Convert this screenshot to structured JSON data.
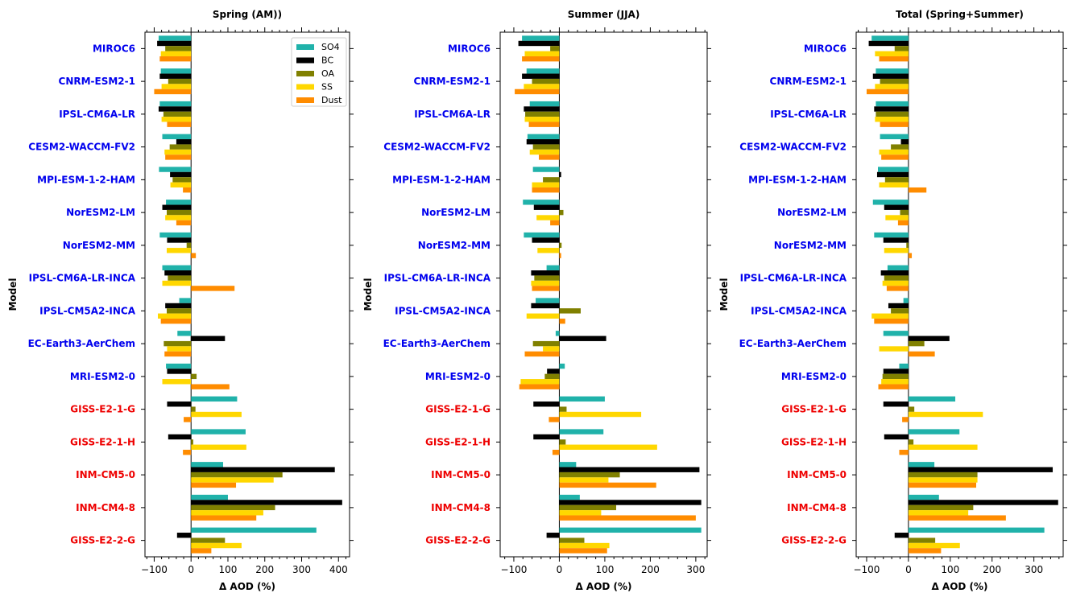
{
  "colors": {
    "SO4": "#20b2aa",
    "BC": "#000000",
    "OA": "#808000",
    "SS": "#ffd700",
    "Dust": "#ff8c00",
    "model_blue": "#0000ee",
    "model_red": "#ee0000"
  },
  "legend": {
    "placement": "upper-right of first panel",
    "entries": [
      "SO4",
      "BC",
      "OA",
      "SS",
      "Dust"
    ]
  },
  "chart_data": {
    "type": "bar",
    "orientation": "horizontal",
    "ylabel": "Model",
    "xlabel": "Δ AOD (%)",
    "species": [
      "SO4",
      "BC",
      "OA",
      "SS",
      "Dust"
    ],
    "models": [
      {
        "name": "MIROC6",
        "group": "blue"
      },
      {
        "name": "CNRM-ESM2-1",
        "group": "blue"
      },
      {
        "name": "IPSL-CM6A-LR",
        "group": "blue"
      },
      {
        "name": "CESM2-WACCM-FV2",
        "group": "blue"
      },
      {
        "name": "MPI-ESM-1-2-HAM",
        "group": "blue"
      },
      {
        "name": "NorESM2-LM",
        "group": "blue"
      },
      {
        "name": "NorESM2-MM",
        "group": "blue"
      },
      {
        "name": "IPSL-CM6A-LR-INCA",
        "group": "blue"
      },
      {
        "name": "IPSL-CM5A2-INCA",
        "group": "blue"
      },
      {
        "name": "EC-Earth3-AerChem",
        "group": "blue"
      },
      {
        "name": "MRI-ESM2-0",
        "group": "blue"
      },
      {
        "name": "GISS-E2-1-G",
        "group": "red"
      },
      {
        "name": "GISS-E2-1-H",
        "group": "red"
      },
      {
        "name": "INM-CM5-0",
        "group": "red"
      },
      {
        "name": "INM-CM4-8",
        "group": "red"
      },
      {
        "name": "GISS-E2-2-G",
        "group": "red"
      }
    ],
    "panels": [
      {
        "title": "Spring (AM))",
        "xlim": [
          -125,
          430
        ],
        "xticks": [
          -100,
          0,
          100,
          200,
          300,
          400
        ],
        "series": [
          {
            "name": "SO4",
            "values": [
              -88,
              -82,
              -85,
              -78,
              -87,
              -68,
              -85,
              -78,
              -32,
              -37,
              -68,
              125,
              148,
              87,
              100,
              340
            ]
          },
          {
            "name": "BC",
            "values": [
              -92,
              -85,
              -88,
              -40,
              -57,
              -78,
              -65,
              -72,
              -70,
              92,
              -65,
              -65,
              -62,
              390,
              410,
              -38
            ]
          },
          {
            "name": "OA",
            "values": [
              -70,
              -62,
              -75,
              -58,
              -50,
              -66,
              -12,
              -63,
              -66,
              -74,
              15,
              12,
              6,
              248,
              228,
              92
            ]
          },
          {
            "name": "SS",
            "values": [
              -82,
              -80,
              -80,
              -72,
              -56,
              -70,
              -66,
              -78,
              -90,
              -65,
              -78,
              137,
              150,
              224,
              196,
              137
            ]
          },
          {
            "name": "Dust",
            "values": [
              -85,
              -100,
              -65,
              -70,
              -22,
              -40,
              13,
              118,
              -82,
              -72,
              104,
              -20,
              -22,
              122,
              177,
              55
            ]
          }
        ]
      },
      {
        "title": "Summer (JJA)",
        "xlim": [
          -130,
          325
        ],
        "xticks": [
          -100,
          0,
          100,
          200,
          300
        ],
        "series": [
          {
            "name": "SO4",
            "values": [
              -82,
              -72,
              -65,
              -70,
              -58,
              -80,
              -78,
              -28,
              -52,
              -8,
              12,
              100,
              97,
              37,
              45,
              312
            ]
          },
          {
            "name": "BC",
            "values": [
              -90,
              -82,
              -78,
              -72,
              4,
              -56,
              -60,
              -62,
              -62,
              103,
              -27,
              -57,
              -57,
              308,
              312,
              -28
            ]
          },
          {
            "name": "OA",
            "values": [
              -20,
              -60,
              -75,
              -58,
              -36,
              9,
              5,
              -55,
              47,
              -58,
              -32,
              16,
              14,
              133,
              125,
              55
            ]
          },
          {
            "name": "SS",
            "values": [
              -76,
              -78,
              -76,
              -65,
              -60,
              -50,
              -48,
              -62,
              -72,
              -36,
              -85,
              180,
              215,
              108,
              92,
              110
            ]
          },
          {
            "name": "Dust",
            "values": [
              -82,
              -98,
              -67,
              -45,
              -60,
              -20,
              4,
              -60,
              13,
              -76,
              -88,
              -23,
              -15,
              213,
              300,
              105
            ]
          }
        ]
      },
      {
        "title": "Total (Spring+Summer)",
        "xlim": [
          -125,
          370
        ],
        "xticks": [
          -100,
          0,
          100,
          200,
          300
        ],
        "series": [
          {
            "name": "SO4",
            "values": [
              -88,
              -78,
              -78,
              -68,
              -73,
              -85,
              -82,
              -50,
              -12,
              -60,
              -22,
              112,
              122,
              62,
              73,
              325
            ]
          },
          {
            "name": "BC",
            "values": [
              -95,
              -85,
              -82,
              -18,
              -75,
              -58,
              -60,
              -66,
              -48,
              98,
              -60,
              -60,
              -58,
              345,
              358,
              -33
            ]
          },
          {
            "name": "OA",
            "values": [
              -33,
              -68,
              -78,
              -42,
              -56,
              -20,
              -5,
              -58,
              -42,
              38,
              -62,
              14,
              12,
              165,
              155,
              64
            ]
          },
          {
            "name": "SS",
            "values": [
              -80,
              -80,
              -80,
              -70,
              -70,
              -55,
              -58,
              -62,
              -88,
              -70,
              -65,
              178,
              165,
              165,
              143,
              123
            ]
          },
          {
            "name": "Dust",
            "values": [
              -70,
              -100,
              -68,
              -65,
              43,
              -25,
              8,
              -52,
              -82,
              63,
              -72,
              -15,
              -22,
              162,
              233,
              78
            ]
          }
        ]
      }
    ]
  }
}
